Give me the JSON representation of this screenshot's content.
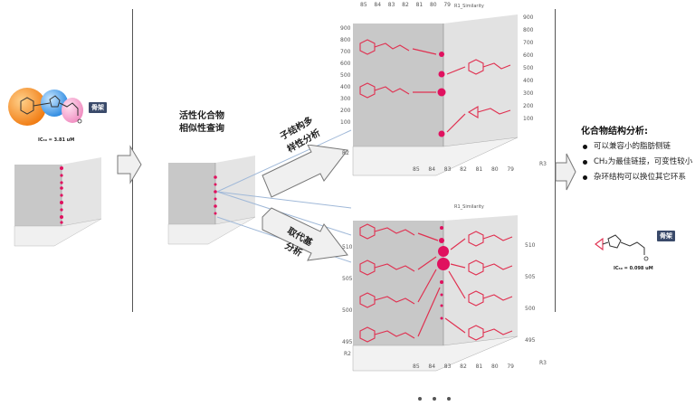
{
  "left": {
    "ic50": "IC₅₀ = 3.81 uM",
    "scaffold_tag": "骨架"
  },
  "middle": {
    "title_line1": "活性化合物",
    "title_line2": "相似性查询"
  },
  "branches": {
    "upper_line1": "子结构多",
    "upper_line2": "样性分析",
    "lower_line1": "取代基",
    "lower_line2": "分析"
  },
  "axis_labels": {
    "r1_similarity": "R1_Similarity",
    "r2": "R2",
    "r3": "R3"
  },
  "top_panel": {
    "top_ticks": [
      "85",
      "84",
      "83",
      "82",
      "81",
      "80",
      "79"
    ],
    "right_ticks": [
      "900",
      "800",
      "700",
      "600",
      "500",
      "400",
      "300",
      "200",
      "100"
    ],
    "left_ticks": [
      "900",
      "800",
      "700",
      "600",
      "500",
      "400",
      "300",
      "200",
      "100"
    ],
    "bottom_ticks": [
      "85",
      "84",
      "83",
      "82",
      "81",
      "80",
      "79"
    ]
  },
  "bottom_panel": {
    "right_ticks": [
      "510",
      "505",
      "500",
      "495"
    ],
    "left_ticks": [
      "510",
      "505",
      "500",
      "495"
    ],
    "bottom_ticks": [
      "85",
      "84",
      "83",
      "82",
      "81",
      "80",
      "79"
    ]
  },
  "analysis": {
    "title": "化合物结构分析:",
    "items": [
      "可以兼容小的脂肪侧链",
      "CH₂为最佳链接，可变性较小",
      "杂环结构可以换位其它环系"
    ],
    "scaffold_tag": "骨架",
    "ic50": "IC₅₀ = 0.098 uM"
  },
  "colors": {
    "accent": "#e0115f",
    "molecule": "#e03050",
    "arrow_fill": "#f0f0f0",
    "tag_bg": "#3a4a6a"
  }
}
